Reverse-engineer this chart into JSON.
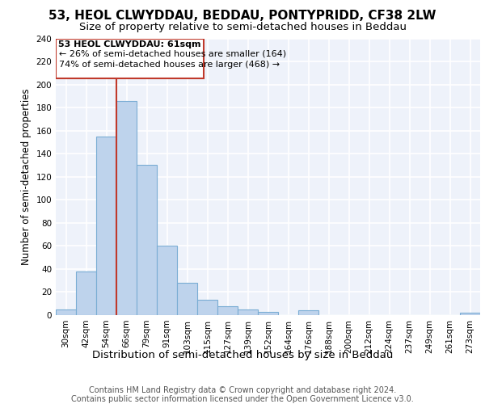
{
  "title1": "53, HEOL CLWYDDAU, BEDDAU, PONTYPRIDD, CF38 2LW",
  "title2": "Size of property relative to semi-detached houses in Beddau",
  "xlabel": "Distribution of semi-detached houses by size in Beddau",
  "ylabel": "Number of semi-detached properties",
  "categories": [
    "30sqm",
    "42sqm",
    "54sqm",
    "66sqm",
    "79sqm",
    "91sqm",
    "103sqm",
    "115sqm",
    "127sqm",
    "139sqm",
    "152sqm",
    "164sqm",
    "176sqm",
    "188sqm",
    "200sqm",
    "212sqm",
    "224sqm",
    "237sqm",
    "249sqm",
    "261sqm",
    "273sqm"
  ],
  "values": [
    5,
    38,
    155,
    186,
    130,
    60,
    28,
    13,
    8,
    5,
    3,
    0,
    4,
    0,
    0,
    0,
    0,
    0,
    0,
    0,
    2
  ],
  "bar_color": "#bed3ec",
  "bar_edge_color": "#7aadd4",
  "background_color": "#eef2fa",
  "grid_color": "#ffffff",
  "property_line_x": 2.5,
  "property_line_color": "#c0392b",
  "annotation_line1": "53 HEOL CLWYDDAU: 61sqm",
  "annotation_line2": "← 26% of semi-detached houses are smaller (164)",
  "annotation_line3": "74% of semi-detached houses are larger (468) →",
  "annotation_box_color": "#c0392b",
  "ylim": [
    0,
    240
  ],
  "yticks": [
    0,
    20,
    40,
    60,
    80,
    100,
    120,
    140,
    160,
    180,
    200,
    220,
    240
  ],
  "footer1": "Contains HM Land Registry data © Crown copyright and database right 2024.",
  "footer2": "Contains public sector information licensed under the Open Government Licence v3.0.",
  "title1_fontsize": 11,
  "title2_fontsize": 9.5,
  "xlabel_fontsize": 9.5,
  "ylabel_fontsize": 8.5,
  "tick_fontsize": 7.5,
  "annotation_fontsize": 8,
  "footer_fontsize": 7
}
